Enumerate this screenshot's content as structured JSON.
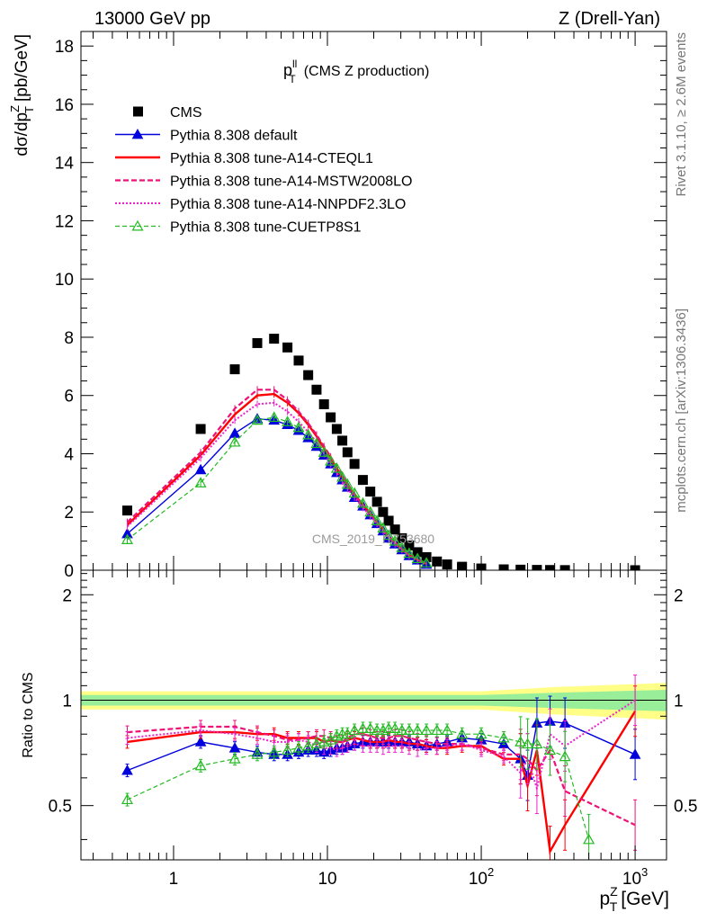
{
  "header": {
    "left": "13000 GeV pp",
    "right": "Z (Drell-Yan)"
  },
  "side_text": {
    "rivet": "Rivet 3.1.10, ≥ 2.6M events",
    "mcplots": "mcplots.cern.ch [arXiv:1306.3436]"
  },
  "watermark": "CMS_2019_I1753680",
  "colors": {
    "data": "#000000",
    "default": "#0000dd",
    "cteql1": "#ff0000",
    "mstw": "#ee1177",
    "nnpdf": "#ee22cc",
    "cuetp": "#22bb22",
    "band_outer": "#ffff88",
    "band_inner": "#99ee99"
  },
  "chart_data": [
    {
      "type": "scatter",
      "panel": "main",
      "title_main": "p",
      "title_sup": "ll",
      "title_sub": "T",
      "title_rest": "(CMS Z production)",
      "ylabel": "dσ/dp",
      "ylabel_sup": "Z",
      "ylabel_sub": "T",
      "ylabel_units": "[pb/GeV]",
      "xscale": "log",
      "xlim": [
        0.25,
        1600
      ],
      "ylim": [
        0,
        18.5
      ],
      "yticks": [
        0,
        2,
        4,
        6,
        8,
        10,
        12,
        14,
        16,
        18
      ],
      "legend_position": "top-left",
      "series": [
        {
          "name": "CMS",
          "key": "data",
          "style": "square",
          "x": [
            0.5,
            1.5,
            2.5,
            3.5,
            4.5,
            5.5,
            6.5,
            7.5,
            8.5,
            9.5,
            10.5,
            11.5,
            12.5,
            13.5,
            15,
            17,
            19,
            21,
            23,
            25,
            27.5,
            30.5,
            34,
            38.5,
            44,
            51.5,
            60,
            75,
            100,
            140,
            180,
            230,
            280,
            350,
            1000
          ],
          "y": [
            2.05,
            4.85,
            6.9,
            7.8,
            7.95,
            7.65,
            7.2,
            6.7,
            6.2,
            5.7,
            5.25,
            4.85,
            4.45,
            4.05,
            3.65,
            3.1,
            2.7,
            2.35,
            2.0,
            1.7,
            1.4,
            1.1,
            0.85,
            0.62,
            0.45,
            0.3,
            0.2,
            0.12,
            0.06,
            0.03,
            0.02,
            0.012,
            0.008,
            0.005,
            0.001
          ]
        },
        {
          "name": "Pythia 8.308 default",
          "key": "default",
          "style": "line-triangle",
          "x": [
            0.5,
            1.5,
            2.5,
            3.5,
            4.5,
            5.5,
            6.5,
            7.5,
            8.5,
            9.5,
            10.5,
            11.5,
            12.5,
            13.5,
            15,
            17,
            19,
            21,
            23,
            25,
            27.5,
            30.5,
            34,
            38.5,
            44
          ],
          "y": [
            1.25,
            3.45,
            4.7,
            5.2,
            5.15,
            5.0,
            4.8,
            4.55,
            4.25,
            3.95,
            3.65,
            3.35,
            3.1,
            2.85,
            2.5,
            2.2,
            1.9,
            1.6,
            1.35,
            1.1,
            0.9,
            0.7,
            0.5,
            0.35,
            0.2
          ]
        },
        {
          "name": "Pythia 8.308 tune-A14-CTEQL1",
          "key": "cteql1",
          "style": "solid",
          "x": [
            0.5,
            1.5,
            2.5,
            3.5,
            4.5,
            5.5,
            6.5,
            7.5,
            8.5,
            9.5,
            10.5,
            11.5,
            12.5,
            13.5,
            15,
            17,
            19,
            21,
            23,
            25,
            27.5,
            30.5,
            34,
            38.5,
            44
          ],
          "y": [
            1.55,
            3.95,
            5.35,
            6.0,
            6.05,
            5.75,
            5.4,
            5.0,
            4.6,
            4.2,
            3.85,
            3.5,
            3.2,
            2.95,
            2.6,
            2.25,
            1.95,
            1.65,
            1.4,
            1.15,
            0.95,
            0.72,
            0.52,
            0.36,
            0.22
          ]
        },
        {
          "name": "Pythia 8.308 tune-A14-MSTW2008LO",
          "key": "mstw",
          "style": "dashed",
          "x": [
            0.5,
            1.5,
            2.5,
            3.5,
            4.5,
            5.5,
            6.5,
            7.5,
            8.5,
            9.5,
            10.5,
            11.5,
            12.5,
            13.5,
            15,
            17,
            19,
            21,
            23,
            25,
            27.5,
            30.5,
            34,
            38.5,
            44
          ],
          "y": [
            1.65,
            4.05,
            5.55,
            6.2,
            6.2,
            5.85,
            5.45,
            5.05,
            4.65,
            4.25,
            3.9,
            3.55,
            3.25,
            2.95,
            2.6,
            2.25,
            1.95,
            1.65,
            1.4,
            1.15,
            0.95,
            0.72,
            0.52,
            0.36,
            0.22
          ]
        },
        {
          "name": "Pythia 8.308 tune-A14-NNPDF2.3LO",
          "key": "nnpdf",
          "style": "dotted",
          "x": [
            0.5,
            1.5,
            2.5,
            3.5,
            4.5,
            5.5,
            6.5,
            7.5,
            8.5,
            9.5,
            10.5,
            11.5,
            12.5,
            13.5,
            15,
            17,
            19,
            21,
            23,
            25,
            27.5,
            30.5,
            34,
            38.5,
            44
          ],
          "y": [
            1.5,
            3.85,
            5.15,
            5.7,
            5.75,
            5.45,
            5.1,
            4.75,
            4.4,
            4.0,
            3.65,
            3.35,
            3.05,
            2.8,
            2.5,
            2.15,
            1.85,
            1.6,
            1.35,
            1.1,
            0.9,
            0.7,
            0.5,
            0.35,
            0.2
          ]
        },
        {
          "name": "Pythia 8.308 tune-CUETP8S1",
          "key": "cuetp",
          "style": "dashed-open-triangle",
          "x": [
            0.5,
            1.5,
            2.5,
            3.5,
            4.5,
            5.5,
            6.5,
            7.5,
            8.5,
            9.5,
            10.5,
            11.5,
            12.5,
            13.5,
            15,
            17,
            19,
            21,
            23,
            25,
            27.5,
            30.5,
            34,
            38.5,
            44
          ],
          "y": [
            1.05,
            3.0,
            4.4,
            5.15,
            5.25,
            5.1,
            4.9,
            4.65,
            4.35,
            4.05,
            3.75,
            3.5,
            3.2,
            2.95,
            2.65,
            2.3,
            2.0,
            1.7,
            1.45,
            1.2,
            1.0,
            0.78,
            0.58,
            0.4,
            0.25
          ]
        }
      ]
    },
    {
      "type": "line",
      "panel": "ratio",
      "ylabel": "Ratio to CMS",
      "xlabel": "p",
      "xlabel_sup": "Z",
      "xlabel_sub": "T",
      "xlabel_units": "[GeV]",
      "xscale": "log",
      "xlim": [
        0.25,
        1600
      ],
      "ylim": [
        0.35,
        2.35
      ],
      "yscale": "log",
      "ytick_labels": [
        {
          "value": 0.5,
          "label": "0.5"
        },
        {
          "value": 1,
          "label": "1"
        },
        {
          "value": 2,
          "label": "2"
        }
      ],
      "xtick_labels": [
        {
          "value": 1,
          "label": "1",
          "exp": ""
        },
        {
          "value": 10,
          "label": "10",
          "exp": ""
        },
        {
          "value": 100,
          "label": "10",
          "exp": "2"
        },
        {
          "value": 1000,
          "label": "10",
          "exp": "3"
        }
      ],
      "band": {
        "x": [
          0.25,
          100,
          300,
          1600
        ],
        "outer": [
          0.06,
          0.06,
          0.09,
          0.12
        ],
        "inner": [
          0.035,
          0.035,
          0.05,
          0.07
        ]
      },
      "series": [
        {
          "key": "default",
          "x": [
            0.5,
            1.5,
            2.5,
            3.5,
            4.5,
            5.5,
            6.5,
            7.5,
            8.5,
            9.5,
            10.5,
            11.5,
            12.5,
            13.5,
            15,
            17,
            19,
            21,
            23,
            25,
            27.5,
            30.5,
            34,
            38.5,
            44,
            51.5,
            60,
            75,
            100,
            140,
            180,
            200,
            230,
            280,
            350,
            1000
          ],
          "y": [
            0.63,
            0.76,
            0.73,
            0.71,
            0.7,
            0.7,
            0.71,
            0.72,
            0.72,
            0.71,
            0.72,
            0.73,
            0.73,
            0.74,
            0.75,
            0.76,
            0.76,
            0.76,
            0.76,
            0.76,
            0.76,
            0.76,
            0.76,
            0.75,
            0.74,
            0.75,
            0.76,
            0.78,
            0.77,
            0.75,
            0.68,
            0.61,
            0.86,
            0.87,
            0.86,
            0.7
          ]
        },
        {
          "key": "cteql1",
          "x": [
            0.5,
            1.5,
            2.5,
            3.5,
            4.5,
            5.5,
            6.5,
            7.5,
            8.5,
            9.5,
            10.5,
            11.5,
            12.5,
            13.5,
            15,
            17,
            19,
            21,
            23,
            25,
            27.5,
            30.5,
            34,
            38.5,
            44,
            51.5,
            60,
            75,
            100,
            140,
            180,
            200,
            230,
            280,
            350,
            1000
          ],
          "y": [
            0.76,
            0.81,
            0.81,
            0.8,
            0.8,
            0.78,
            0.78,
            0.78,
            0.78,
            0.76,
            0.77,
            0.76,
            0.76,
            0.77,
            0.78,
            0.77,
            0.76,
            0.76,
            0.76,
            0.77,
            0.76,
            0.76,
            0.75,
            0.75,
            0.74,
            0.73,
            0.73,
            0.74,
            0.74,
            0.68,
            0.68,
            0.57,
            0.72,
            0.37,
            0.44,
            0.93
          ]
        },
        {
          "key": "mstw",
          "x": [
            0.5,
            1.5,
            2.5,
            3.5,
            4.5,
            5.5,
            6.5,
            7.5,
            8.5,
            9.5,
            10.5,
            11.5,
            12.5,
            13.5,
            15,
            17,
            19,
            21,
            23,
            25,
            27.5,
            30.5,
            34,
            38.5,
            44,
            51.5,
            60,
            75,
            100,
            140,
            180,
            200,
            230,
            280,
            350,
            1000
          ],
          "y": [
            0.81,
            0.84,
            0.84,
            0.81,
            0.79,
            0.77,
            0.77,
            0.78,
            0.79,
            0.79,
            0.78,
            0.76,
            0.76,
            0.78,
            0.8,
            0.8,
            0.79,
            0.78,
            0.78,
            0.78,
            0.79,
            0.79,
            0.78,
            0.77,
            0.76,
            0.75,
            0.75,
            0.75,
            0.73,
            0.7,
            0.7,
            0.68,
            0.63,
            0.72,
            0.55,
            0.44
          ]
        },
        {
          "key": "nnpdf",
          "x": [
            0.5,
            1.5,
            2.5,
            3.5,
            4.5,
            5.5,
            6.5,
            7.5,
            8.5,
            9.5,
            10.5,
            11.5,
            12.5,
            13.5,
            15,
            17,
            19,
            21,
            23,
            25,
            27.5,
            30.5,
            34,
            38.5,
            44,
            51.5,
            60,
            75,
            100,
            140,
            180,
            200,
            230,
            280,
            350,
            1000
          ],
          "y": [
            0.78,
            0.82,
            0.8,
            0.78,
            0.76,
            0.76,
            0.77,
            0.76,
            0.74,
            0.73,
            0.73,
            0.72,
            0.73,
            0.74,
            0.75,
            0.74,
            0.74,
            0.74,
            0.73,
            0.74,
            0.74,
            0.74,
            0.73,
            0.72,
            0.73,
            0.73,
            0.74,
            0.75,
            0.72,
            0.69,
            0.62,
            0.68,
            0.56,
            0.8,
            0.74,
            1.0
          ]
        },
        {
          "key": "cuetp",
          "x": [
            0.5,
            1.5,
            2.5,
            3.5,
            4.5,
            5.5,
            6.5,
            7.5,
            8.5,
            9.5,
            10.5,
            11.5,
            12.5,
            13.5,
            15,
            17,
            19,
            21,
            23,
            25,
            27.5,
            30.5,
            34,
            38.5,
            44,
            51.5,
            60,
            75,
            100,
            140,
            180,
            200,
            230,
            280,
            350,
            500
          ],
          "y": [
            0.52,
            0.65,
            0.68,
            0.7,
            0.71,
            0.72,
            0.73,
            0.74,
            0.75,
            0.76,
            0.77,
            0.79,
            0.8,
            0.8,
            0.82,
            0.83,
            0.83,
            0.82,
            0.82,
            0.83,
            0.83,
            0.82,
            0.82,
            0.82,
            0.82,
            0.82,
            0.82,
            0.8,
            0.8,
            0.78,
            0.76,
            0.75,
            0.75,
            0.72,
            0.69,
            0.4
          ]
        }
      ]
    }
  ]
}
